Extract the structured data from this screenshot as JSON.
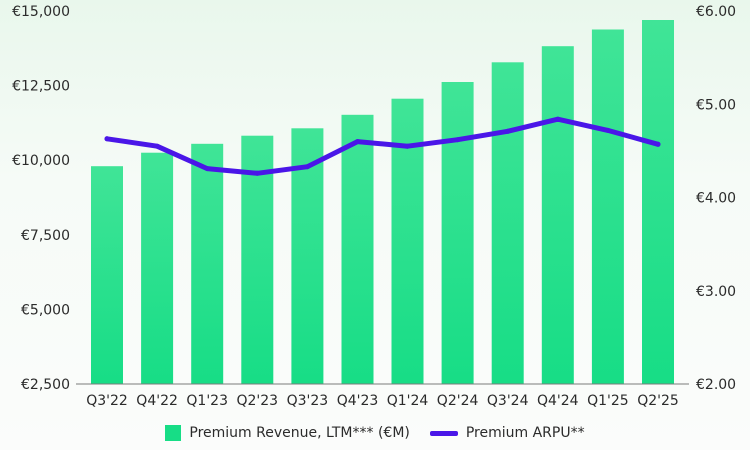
{
  "colors": {
    "bar_top": "#40e497",
    "bar_bottom": "#17dd86",
    "line": "#4a16e8",
    "axis": "#7b7b7b",
    "text": "#2b2b2b"
  },
  "chart_data": {
    "type": "bar",
    "title": "",
    "xlabel": "",
    "ylabel": "",
    "categories": [
      "Q3'22",
      "Q4'22",
      "Q1'23",
      "Q2'23",
      "Q3'23",
      "Q4'23",
      "Q1'24",
      "Q2'24",
      "Q3'24",
      "Q4'24",
      "Q1'25",
      "Q2'25"
    ],
    "series": [
      {
        "name": "Premium Revenue, LTM*** (€M)",
        "type": "bar",
        "axis": "left",
        "values": [
          9800,
          10250,
          10550,
          10820,
          11070,
          11520,
          12060,
          12620,
          13280,
          13820,
          14380,
          14700
        ]
      },
      {
        "name": "Premium ARPU**",
        "type": "line",
        "axis": "right",
        "values": [
          4.63,
          4.55,
          4.31,
          4.26,
          4.33,
          4.6,
          4.55,
          4.62,
          4.71,
          4.84,
          4.72,
          4.57
        ]
      }
    ],
    "y_left": {
      "range": [
        2500,
        15000
      ],
      "ticks": [
        2500,
        5000,
        7500,
        10000,
        12500,
        15000
      ],
      "tick_labels": [
        "€2,500",
        "€5,000",
        "€7,500",
        "€10,000",
        "€12,500",
        "€15,000"
      ]
    },
    "y_right": {
      "range": [
        2.0,
        6.0
      ],
      "ticks": [
        2,
        3,
        4,
        5,
        6
      ],
      "tick_labels": [
        "€2.00",
        "€3.00",
        "€4.00",
        "€5.00",
        "€6.00"
      ]
    },
    "grid": false,
    "legend_position": "bottom-center"
  }
}
